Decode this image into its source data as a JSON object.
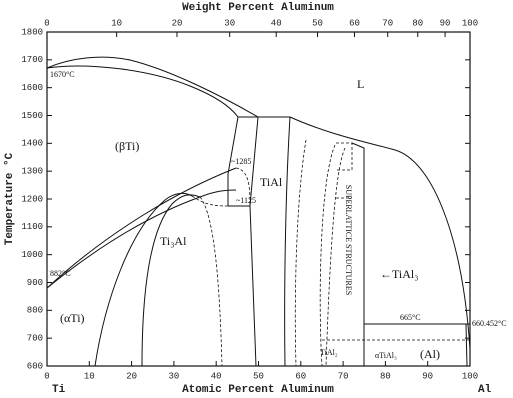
{
  "chart_data": {
    "type": "phase-diagram",
    "top_label": "Weight Percent Aluminum",
    "x_label": "Atomic Percent Aluminum",
    "y_label": "Temperature °C",
    "end_labels": [
      "Ti",
      "Al"
    ],
    "xlim": [
      0,
      100
    ],
    "xticks": [
      0,
      10,
      20,
      30,
      40,
      50,
      60,
      70,
      80,
      90,
      100
    ],
    "top_ticks": [
      0,
      10,
      20,
      30,
      40,
      50,
      60,
      70,
      80,
      90,
      100
    ],
    "ylim": [
      600,
      1800
    ],
    "yticks": [
      600,
      700,
      800,
      900,
      1000,
      1100,
      1200,
      1300,
      1400,
      1500,
      1600,
      1700,
      1800
    ],
    "labels": {
      "liquid": "L",
      "beta_ti": "(βTi)",
      "alpha_ti": "(αTi)",
      "ti3al": "Ti₃Al",
      "tial": "TiAl",
      "tial3": "←TiAl₃",
      "tial2": "TiAl₂",
      "alpha_tial3": "αTiAl₃",
      "al": "(Al)",
      "superlattice": "SUPERLATTICE STRUCTURES",
      "t1670": "1670°C",
      "t882": "882°C",
      "t665": "665°C",
      "t660": "660.452°C",
      "t1285": "~1285",
      "t1125": "~1125"
    }
  }
}
